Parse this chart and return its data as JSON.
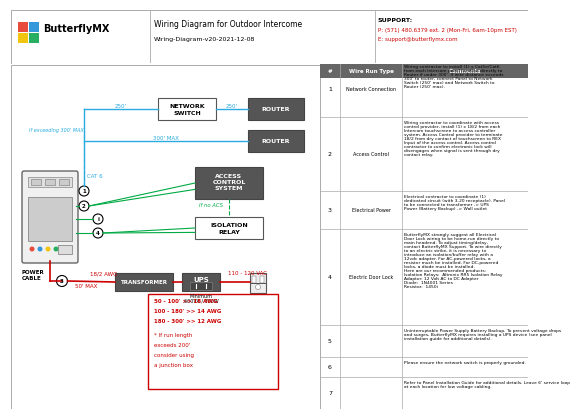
{
  "title": "Wiring Diagram for Outdoor Intercome",
  "subtitle": "Wiring-Diagram-v20-2021-12-08",
  "logo_text": "ButterflyMX",
  "support_line1": "SUPPORT:",
  "support_line2": "P: (571) 480.6379 ext. 2 (Mon-Fri, 6am-10pm EST)",
  "support_line3": "E: support@butterflymx.com",
  "bg_color": "#ffffff",
  "cyan": "#29aae1",
  "green": "#00aa44",
  "red": "#cc0000",
  "dark_gray": "#555555",
  "logo_colors": [
    "#e74c3c",
    "#3498db",
    "#f1c40f",
    "#27ae60"
  ],
  "wire_rows": [
    {
      "num": "1",
      "type": "Network Connection",
      "comment": "Wiring contractor to install (1) x Cat5e/Cat6\nfrom each Intercom panel location directly to\nRouter if under 300'. If wire distance exceeds\n300' to router, connect Panel to Network\nSwitch (250' max) and Network Switch to\nRouter (250' max)."
    },
    {
      "num": "2",
      "type": "Access Control",
      "comment": "Wiring contractor to coordinate with access\ncontrol provider, install (1) x 18/2 from each\nIntercom touchscreen to access controller\nsystem. Access Control provider to terminate\n18/2 from dry contact of touchscreen to REX\nInput of the access control. Access control\ncontractor to confirm electronic lock will\ndisengages when signal is sent through dry\ncontact relay."
    },
    {
      "num": "3",
      "type": "Electrical Power",
      "comment": "Electrical contractor to coordinate (1)\ndedicated circuit (with 3-20 receptacle). Panel\nto be connected to transformer -> UPS\nPower (Battery Backup) -> Wall outlet"
    },
    {
      "num": "4",
      "type": "Electric Door Lock",
      "comment": "ButterflyMX strongly suggest all Electrical\nDoor Lock wiring to be home-run directly to\nmain headend. To adjust timing/delay,\ncontact ButterflyMX Support. To wire directly\nto an electric strike, it is necessary to\nintroduce an isolation/buffer relay with a\n12vdc adapter. For AC-powered locks, a\nresistor much be installed. For DC-powered\nlocks, a diode must be installed.\nHere are our recommended products:\nIsolation Relays:  Altronix RR5 Isolation Relay\nAdaptor: 12 Volt AC to DC Adapter\nDiode:  1N4001 Series\nResistor:  1450i"
    },
    {
      "num": "5",
      "type": "",
      "comment": "Uninterruptable Power Supply Battery Backup. To prevent voltage drops\nand surges, ButterflyMX requires installing a UPS device (see panel\ninstallation guide for additional details)."
    },
    {
      "num": "6",
      "type": "",
      "comment": "Please ensure the network switch is properly grounded."
    },
    {
      "num": "7",
      "type": "",
      "comment": "Refer to Panel Installation Guide for additional details. Leave 6' service loop\nat each location for low voltage cabling."
    }
  ]
}
